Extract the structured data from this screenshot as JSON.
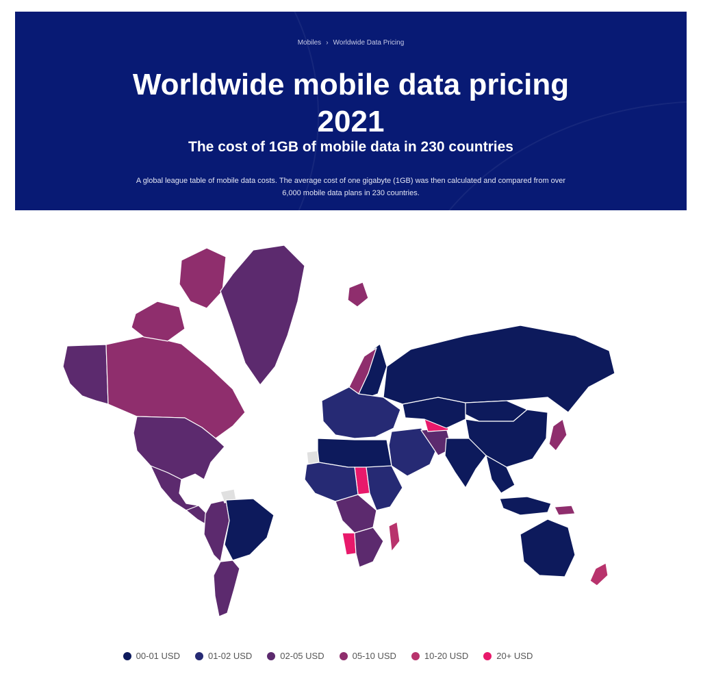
{
  "breadcrumb": {
    "parent": "Mobiles",
    "separator": "›",
    "current": "Worldwide Data Pricing"
  },
  "header": {
    "title_line1": "Worldwide mobile data pricing",
    "title_line2": "2021",
    "subtitle": "The cost of 1GB of mobile data in 230 countries",
    "description_line1": "A global league table of mobile data costs. The average cost of one gigabyte (1GB) was then calculated and compared from over",
    "description_line2": "6,000 mobile data plans in 230 countries."
  },
  "colors": {
    "banner_bg": "#081a74",
    "no_data": "#e0e0e0",
    "border": "#ffffff"
  },
  "legend": [
    {
      "id": "b0",
      "label": "00-01 USD",
      "color": "#0d1a5c"
    },
    {
      "id": "b1",
      "label": "01-02 USD",
      "color": "#262a74"
    },
    {
      "id": "b2",
      "label": "02-05 USD",
      "color": "#5c2a6e"
    },
    {
      "id": "b3",
      "label": "05-10 USD",
      "color": "#8f2e6d"
    },
    {
      "id": "b4",
      "label": "10-20 USD",
      "color": "#b8336c"
    },
    {
      "id": "b5",
      "label": "20+ USD",
      "color": "#e8196b"
    }
  ],
  "regions": [
    {
      "name": "russia",
      "bucket": "b0"
    },
    {
      "name": "china",
      "bucket": "b0"
    },
    {
      "name": "india",
      "bucket": "b0"
    },
    {
      "name": "australia",
      "bucket": "b0"
    },
    {
      "name": "brazil",
      "bucket": "b0"
    },
    {
      "name": "central-asia",
      "bucket": "b0"
    },
    {
      "name": "mongolia",
      "bucket": "b0"
    },
    {
      "name": "southeast-asia",
      "bucket": "b0"
    },
    {
      "name": "indonesia",
      "bucket": "b0"
    },
    {
      "name": "scandinavia",
      "bucket": "b0"
    },
    {
      "name": "north-africa",
      "bucket": "b0"
    },
    {
      "name": "west-africa",
      "bucket": "b1"
    },
    {
      "name": "europe",
      "bucket": "b1"
    },
    {
      "name": "middle-east",
      "bucket": "b1"
    },
    {
      "name": "east-africa",
      "bucket": "b1"
    },
    {
      "name": "usa",
      "bucket": "b2"
    },
    {
      "name": "alaska",
      "bucket": "b2"
    },
    {
      "name": "greenland",
      "bucket": "b2"
    },
    {
      "name": "mexico",
      "bucket": "b2"
    },
    {
      "name": "central-america",
      "bucket": "b2"
    },
    {
      "name": "argentina",
      "bucket": "b2"
    },
    {
      "name": "andes",
      "bucket": "b2"
    },
    {
      "name": "central-africa",
      "bucket": "b2"
    },
    {
      "name": "southern-africa",
      "bucket": "b2"
    },
    {
      "name": "iran",
      "bucket": "b2"
    },
    {
      "name": "canada",
      "bucket": "b3"
    },
    {
      "name": "canadian-arctic",
      "bucket": "b3"
    },
    {
      "name": "svalbard",
      "bucket": "b3"
    },
    {
      "name": "norway",
      "bucket": "b3"
    },
    {
      "name": "japan",
      "bucket": "b3"
    },
    {
      "name": "papua-new-guinea",
      "bucket": "b3"
    },
    {
      "name": "new-zealand",
      "bucket": "b4"
    },
    {
      "name": "madagascar",
      "bucket": "b4"
    },
    {
      "name": "chad",
      "bucket": "b5"
    },
    {
      "name": "turkmenistan",
      "bucket": "b5"
    },
    {
      "name": "namibia",
      "bucket": "b5"
    },
    {
      "name": "french-guiana",
      "bucket": "none"
    },
    {
      "name": "western-sahara",
      "bucket": "none"
    }
  ]
}
